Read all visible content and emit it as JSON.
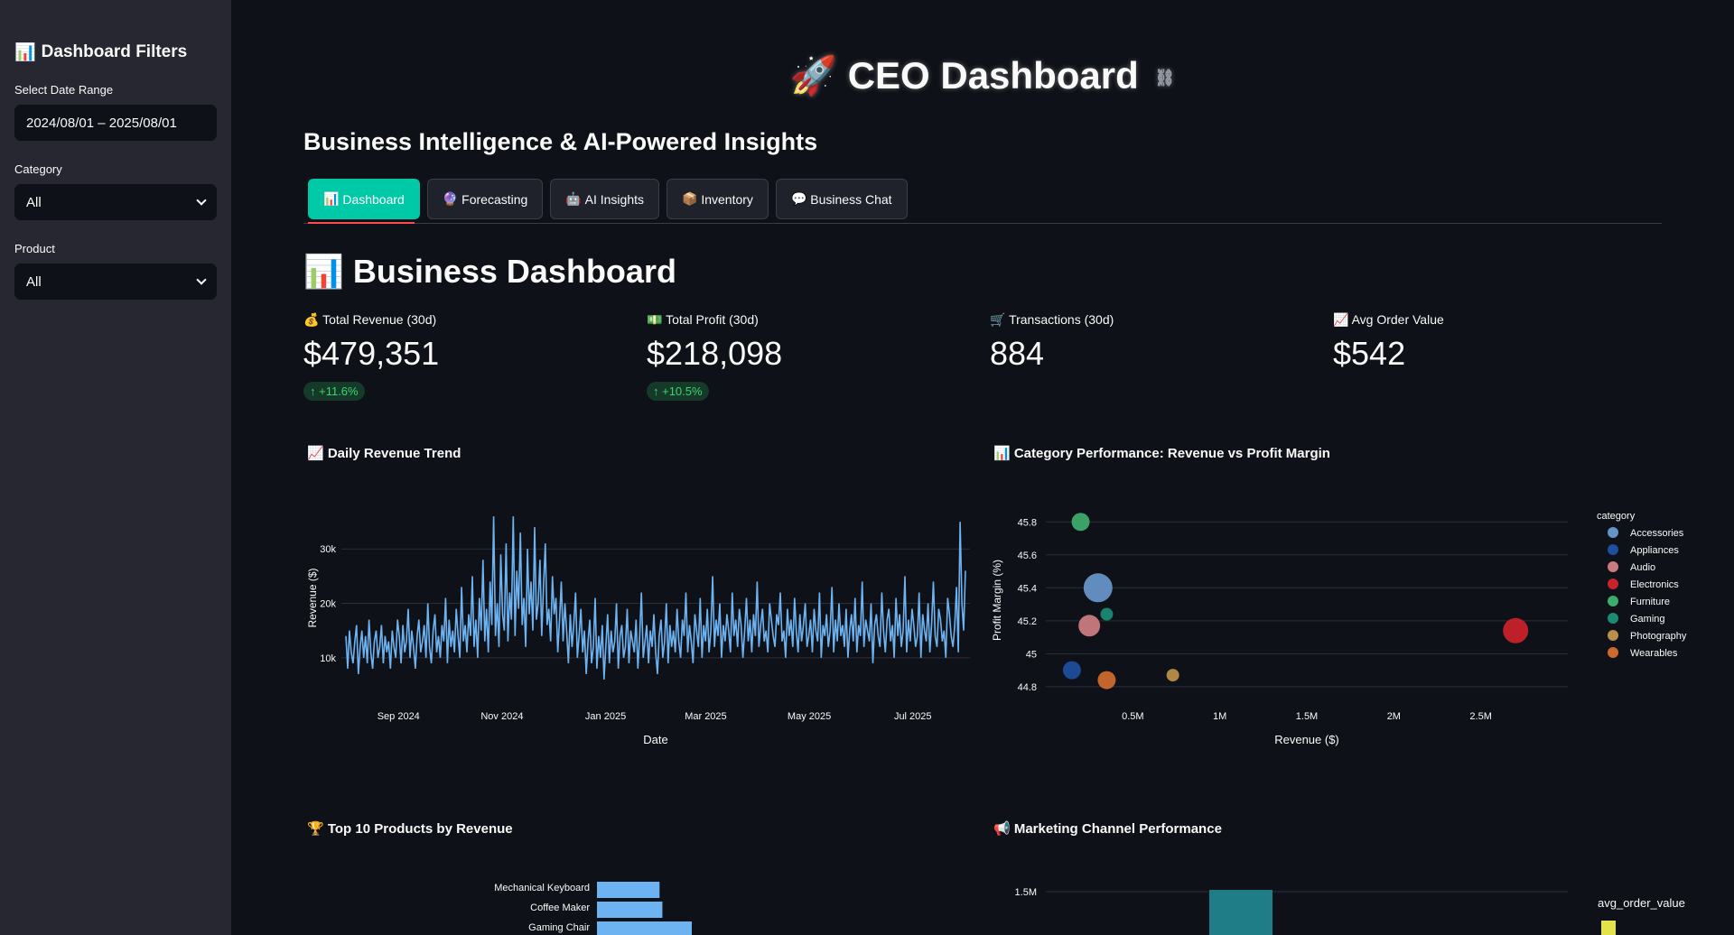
{
  "sidebar": {
    "icon": "📊",
    "title": "Dashboard Filters",
    "date_label": "Select Date Range",
    "date_value": "2024/08/01 – 2025/08/01",
    "category_label": "Category",
    "category_value": "All",
    "product_label": "Product",
    "product_value": "All"
  },
  "header": {
    "icon": "🚀",
    "title": "CEO Dashboard",
    "subtitle": "Business Intelligence & AI-Powered Insights"
  },
  "tabs": [
    {
      "icon": "📊",
      "label": "Dashboard"
    },
    {
      "icon": "🔮",
      "label": "Forecasting"
    },
    {
      "icon": "🤖",
      "label": "AI Insights"
    },
    {
      "icon": "📦",
      "label": "Inventory"
    },
    {
      "icon": "💬",
      "label": "Business Chat"
    }
  ],
  "section": {
    "icon": "📊",
    "title": "Business Dashboard"
  },
  "metrics": [
    {
      "icon": "💰",
      "label": "Total Revenue (30d)",
      "value": "$479,351",
      "delta": "↑ +11.6%"
    },
    {
      "icon": "💵",
      "label": "Total Profit (30d)",
      "value": "$218,098",
      "delta": "↑ +10.5%"
    },
    {
      "icon": "🛒",
      "label": "Transactions (30d)",
      "value": "884"
    },
    {
      "icon": "📈",
      "label": "Avg Order Value",
      "value": "$542"
    }
  ],
  "charts": {
    "revenue_title": "📈 Daily Revenue Trend",
    "category_title": "📊 Category Performance: Revenue vs Profit Margin",
    "products_title": "🏆 Top 10 Products by Revenue",
    "marketing_title": "📢 Marketing Channel Performance"
  },
  "chart_data": [
    {
      "type": "line",
      "title": "Daily Revenue Trend",
      "xlabel": "Date",
      "ylabel": "Revenue ($)",
      "x_ticks": [
        "Sep 2024",
        "Nov 2024",
        "Jan 2025",
        "Mar 2025",
        "May 2025",
        "Jul 2025"
      ],
      "y_ticks": [
        10000,
        20000,
        30000
      ],
      "y_tick_labels": [
        "10k",
        "20k",
        "30k"
      ],
      "ylim": [
        4000,
        38000
      ],
      "x_range": [
        "2024-08-01",
        "2025-08-01"
      ],
      "color": "#6db3f2",
      "values": [
        14000,
        8000,
        15000,
        11000,
        9000,
        13000,
        16000,
        7000,
        12000,
        15000,
        10000,
        14000,
        9000,
        17000,
        11000,
        8000,
        13000,
        15000,
        10000,
        12000,
        16000,
        9000,
        14000,
        11000,
        13000,
        8000,
        15000,
        12000,
        10000,
        17000,
        14000,
        9000,
        16000,
        11000,
        13000,
        19000,
        10000,
        15000,
        12000,
        8000,
        14000,
        17000,
        11000,
        13000,
        16000,
        10000,
        20000,
        12000,
        9000,
        15000,
        18000,
        11000,
        14000,
        10000,
        16000,
        13000,
        21000,
        9000,
        17000,
        12000,
        15000,
        11000,
        19000,
        14000,
        10000,
        23000,
        13000,
        16000,
        11000,
        18000,
        14000,
        25000,
        12000,
        17000,
        10000,
        21000,
        15000,
        28000,
        13000,
        19000,
        11000,
        24000,
        16000,
        36000,
        14000,
        20000,
        12000,
        29000,
        18000,
        15000,
        31000,
        13000,
        22000,
        17000,
        36000,
        14000,
        26000,
        19000,
        33000,
        16000,
        21000,
        12000,
        30000,
        18000,
        24000,
        15000,
        34000,
        17000,
        20000,
        28000,
        14000,
        23000,
        31000,
        16000,
        19000,
        13000,
        25000,
        18000,
        21000,
        11000,
        17000,
        24000,
        13000,
        20000,
        15000,
        9000,
        18000,
        12000,
        16000,
        22000,
        10000,
        14000,
        19000,
        11000,
        15000,
        7000,
        13000,
        17000,
        9000,
        12000,
        21000,
        8000,
        14000,
        10000,
        16000,
        6000,
        12000,
        18000,
        9000,
        15000,
        11000,
        13000,
        20000,
        8000,
        14000,
        16000,
        10000,
        12000,
        19000,
        9000,
        15000,
        13000,
        11000,
        17000,
        8000,
        14000,
        22000,
        10000,
        13000,
        16000,
        9000,
        15000,
        12000,
        18000,
        11000,
        7000,
        14000,
        17000,
        10000,
        13000,
        20000,
        9000,
        16000,
        12000,
        15000,
        11000,
        19000,
        13000,
        10000,
        17000,
        14000,
        22000,
        11000,
        16000,
        13000,
        9000,
        18000,
        15000,
        12000,
        21000,
        10000,
        16000,
        13000,
        19000,
        11000,
        15000,
        25000,
        12000,
        17000,
        14000,
        20000,
        10000,
        16000,
        13000,
        18000,
        15000,
        11000,
        22000,
        14000,
        17000,
        12000,
        19000,
        16000,
        10000,
        15000,
        21000,
        13000,
        17000,
        11000,
        18000,
        14000,
        24000,
        12000,
        16000,
        19000,
        13000,
        15000,
        11000,
        20000,
        17000,
        14000,
        12000,
        18000,
        16000,
        22000,
        13000,
        15000,
        10000,
        19000,
        14000,
        17000,
        12000,
        21000,
        15000,
        11000,
        18000,
        13000,
        16000,
        20000,
        12000,
        14000,
        17000,
        11000,
        19000,
        15000,
        13000,
        22000,
        10000,
        16000,
        14000,
        18000,
        12000,
        15000,
        23000,
        11000,
        17000,
        13000,
        20000,
        14000,
        16000,
        12000,
        19000,
        10000,
        15000,
        18000,
        13000,
        21000,
        11000,
        16000,
        14000,
        24000,
        12000,
        17000,
        15000,
        13000,
        20000,
        9000,
        16000,
        18000,
        14000,
        12000,
        22000,
        15000,
        11000,
        17000,
        19000,
        13000,
        16000,
        10000,
        21000,
        14000,
        18000,
        12000,
        15000,
        25000,
        11000,
        17000,
        13000,
        19000,
        16000,
        12000,
        14000,
        22000,
        10000,
        18000,
        15000,
        13000,
        20000,
        11000,
        16000,
        24000,
        14000,
        12000,
        19000,
        17000,
        13000,
        15000,
        10000,
        21000,
        18000,
        14000,
        12000,
        16000,
        23000,
        11000,
        35000,
        20000,
        15000,
        26000
      ]
    },
    {
      "type": "scatter",
      "title": "Category Performance: Revenue vs Profit Margin",
      "xlabel": "Revenue ($)",
      "ylabel": "Profit Margin (%)",
      "xlim": [
        0,
        3000000
      ],
      "ylim": [
        44.75,
        45.9
      ],
      "x_ticks": [
        500000,
        1000000,
        1500000,
        2000000,
        2500000
      ],
      "x_tick_labels": [
        "0.5M",
        "1M",
        "1.5M",
        "2M",
        "2.5M"
      ],
      "y_ticks": [
        44.8,
        45,
        45.2,
        45.4,
        45.6,
        45.8
      ],
      "y_tick_labels": [
        "44.8",
        "45",
        "45.2",
        "45.4",
        "45.6",
        "45.8"
      ],
      "legend_title": "category",
      "legend_position": "right",
      "series": [
        {
          "name": "Accessories",
          "color": "#6794c7",
          "x": 300000,
          "y": 45.4,
          "size": 16
        },
        {
          "name": "Appliances",
          "color": "#1f4e9c",
          "x": 150000,
          "y": 44.9,
          "size": 10
        },
        {
          "name": "Audio",
          "color": "#c97b80",
          "x": 250000,
          "y": 45.17,
          "size": 12
        },
        {
          "name": "Electronics",
          "color": "#c8222b",
          "x": 2700000,
          "y": 45.14,
          "size": 14
        },
        {
          "name": "Furniture",
          "color": "#3eab6b",
          "x": 200000,
          "y": 45.8,
          "size": 10
        },
        {
          "name": "Gaming",
          "color": "#1a8a73",
          "x": 350000,
          "y": 45.24,
          "size": 7
        },
        {
          "name": "Photography",
          "color": "#b88f4b",
          "x": 730000,
          "y": 44.87,
          "size": 7
        },
        {
          "name": "Wearables",
          "color": "#cc6a2e",
          "x": 350000,
          "y": 44.84,
          "size": 10
        }
      ]
    },
    {
      "type": "bar",
      "title": "Top 10 Products by Revenue",
      "orientation": "horizontal",
      "categories": [
        "Mechanical Keyboard",
        "Coffee Maker",
        "Gaming Chair"
      ],
      "values": [
        0.66,
        0.69,
        1.0
      ],
      "color": "#6db3f2"
    },
    {
      "type": "bar",
      "title": "Marketing Channel Performance",
      "y_ticks": [
        1500000
      ],
      "y_tick_labels": [
        "1.5M"
      ],
      "legend_title": "avg_order_value",
      "color": "#1e7d86"
    }
  ]
}
